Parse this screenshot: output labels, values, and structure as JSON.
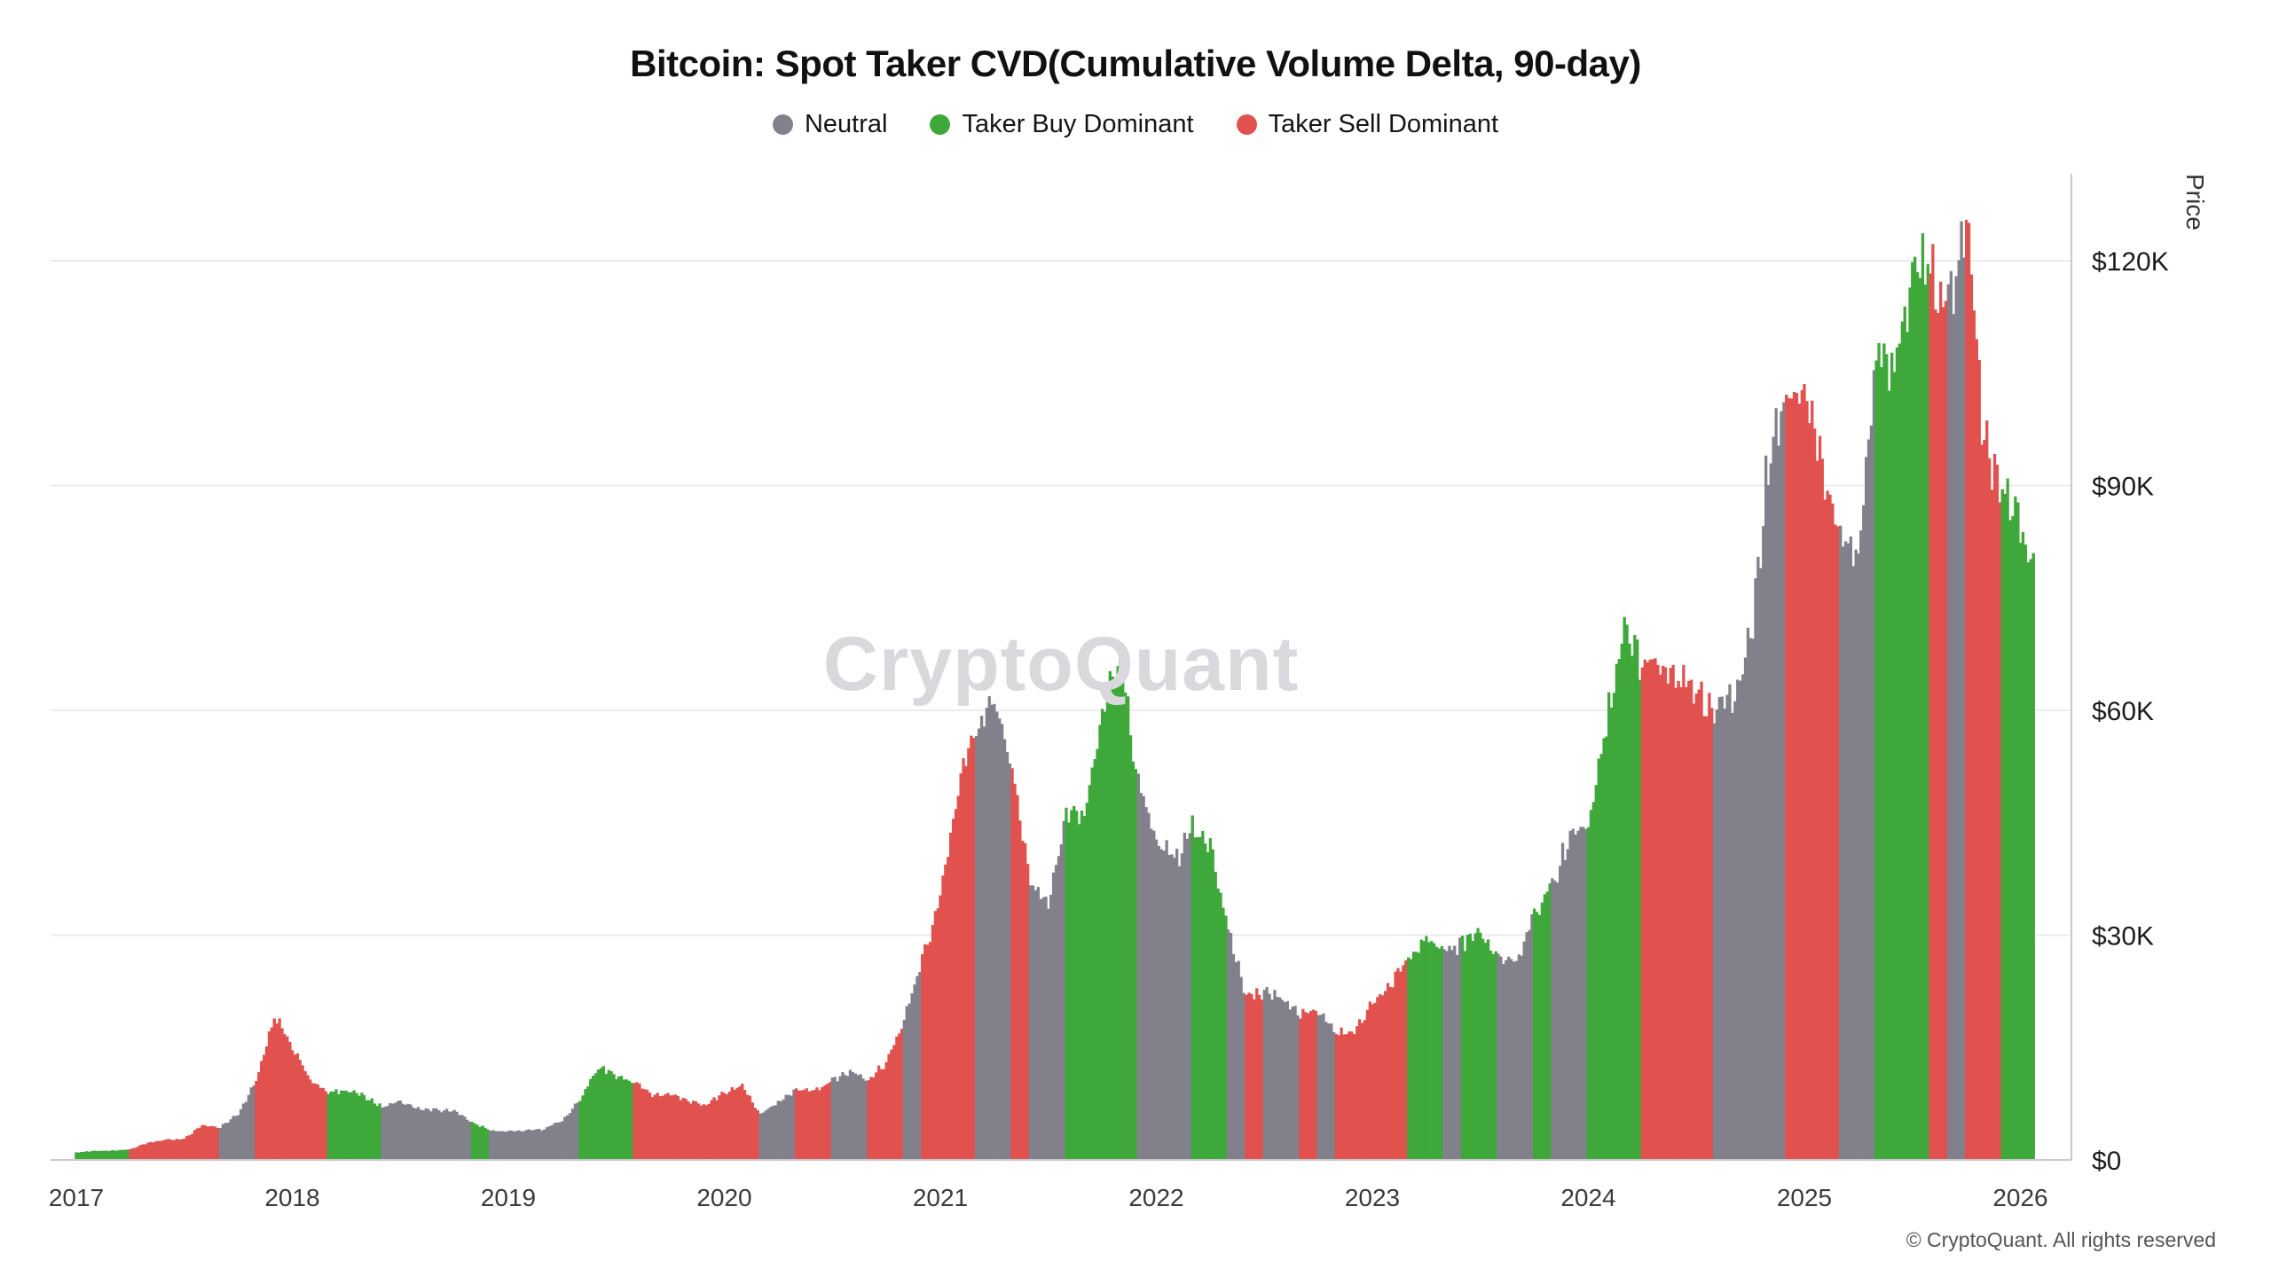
{
  "page": {
    "watermark": "CryptoQuant",
    "footer": "© CryptoQuant. All rights reserved"
  },
  "chart_data": {
    "type": "bar",
    "title": "Bitcoin: Spot Taker CVD(Cumulative Volume Delta, 90-day)",
    "ylabel": "Price",
    "x_unit": "year",
    "y_unit": "thousand USD",
    "ylim_k": [
      0,
      131.5
    ],
    "xlim": [
      2016.9,
      2026.4
    ],
    "grid": "horizontal-only",
    "legend_position": "top-center",
    "legend": [
      {
        "key": "N",
        "label": "Neutral",
        "color": "#82818b"
      },
      {
        "key": "G",
        "label": "Taker Buy Dominant",
        "color": "#3fa83b"
      },
      {
        "key": "R",
        "label": "Taker Sell Dominant",
        "color": "#e1514e"
      }
    ],
    "y_ticks": [
      {
        "value": 0,
        "label": "$0"
      },
      {
        "value": 30,
        "label": "$30K"
      },
      {
        "value": 60,
        "label": "$60K"
      },
      {
        "value": 90,
        "label": "$90K"
      },
      {
        "value": 120,
        "label": "$120K"
      }
    ],
    "x_ticks": [
      {
        "value": 2017,
        "label": "2017"
      },
      {
        "value": 2018,
        "label": "2018"
      },
      {
        "value": 2019,
        "label": "2019"
      },
      {
        "value": 2020,
        "label": "2020"
      },
      {
        "value": 2021,
        "label": "2021"
      },
      {
        "value": 2022,
        "label": "2022"
      },
      {
        "value": 2023,
        "label": "2023"
      },
      {
        "value": 2024,
        "label": "2024"
      },
      {
        "value": 2025,
        "label": "2025"
      },
      {
        "value": 2026,
        "label": "2026"
      }
    ],
    "series_format": [
      "decimal_year",
      "btc_price_thousand_usd",
      "regime: N=Neutral, G=Taker Buy Dominant, R=Taker Sell Dominant"
    ],
    "series": [
      [
        2017.0,
        1.0,
        "G"
      ],
      [
        2017.083,
        1.2,
        "G"
      ],
      [
        2017.167,
        1.25,
        "G"
      ],
      [
        2017.25,
        1.4,
        "R"
      ],
      [
        2017.333,
        2.3,
        "R"
      ],
      [
        2017.417,
        2.7,
        "R"
      ],
      [
        2017.5,
        2.8,
        "R"
      ],
      [
        2017.583,
        4.6,
        "R"
      ],
      [
        2017.667,
        4.4,
        "N"
      ],
      [
        2017.75,
        6.2,
        "N"
      ],
      [
        2017.833,
        10.5,
        "R"
      ],
      [
        2017.917,
        19.3,
        "R"
      ],
      [
        2018.0,
        15.0,
        "R"
      ],
      [
        2018.083,
        10.8,
        "R"
      ],
      [
        2018.167,
        9.0,
        "G"
      ],
      [
        2018.25,
        9.3,
        "G"
      ],
      [
        2018.333,
        8.6,
        "G"
      ],
      [
        2018.417,
        7.0,
        "N"
      ],
      [
        2018.5,
        7.8,
        "N"
      ],
      [
        2018.583,
        6.9,
        "N"
      ],
      [
        2018.667,
        6.7,
        "N"
      ],
      [
        2018.75,
        6.5,
        "N"
      ],
      [
        2018.833,
        5.0,
        "G"
      ],
      [
        2018.917,
        3.9,
        "N"
      ],
      [
        2019.0,
        3.8,
        "N"
      ],
      [
        2019.083,
        3.9,
        "N"
      ],
      [
        2019.167,
        4.1,
        "N"
      ],
      [
        2019.25,
        5.3,
        "N"
      ],
      [
        2019.333,
        8.0,
        "G"
      ],
      [
        2019.417,
        12.5,
        "G"
      ],
      [
        2019.5,
        11.3,
        "G"
      ],
      [
        2019.583,
        10.4,
        "R"
      ],
      [
        2019.667,
        8.6,
        "R"
      ],
      [
        2019.75,
        8.9,
        "R"
      ],
      [
        2019.833,
        7.8,
        "R"
      ],
      [
        2019.917,
        7.3,
        "R"
      ],
      [
        2020.0,
        9.0,
        "R"
      ],
      [
        2020.083,
        9.8,
        "R"
      ],
      [
        2020.167,
        6.2,
        "N"
      ],
      [
        2020.25,
        7.6,
        "N"
      ],
      [
        2020.333,
        9.4,
        "R"
      ],
      [
        2020.417,
        9.3,
        "R"
      ],
      [
        2020.5,
        10.6,
        "N"
      ],
      [
        2020.583,
        11.8,
        "N"
      ],
      [
        2020.667,
        10.8,
        "R"
      ],
      [
        2020.75,
        13.0,
        "R"
      ],
      [
        2020.833,
        18.5,
        "N"
      ],
      [
        2020.917,
        27.0,
        "R"
      ],
      [
        2021.0,
        35,
        "R"
      ],
      [
        2021.083,
        50,
        "R"
      ],
      [
        2021.167,
        58,
        "N"
      ],
      [
        2021.25,
        62,
        "N"
      ],
      [
        2021.333,
        52,
        "R"
      ],
      [
        2021.417,
        37,
        "N"
      ],
      [
        2021.5,
        34,
        "N"
      ],
      [
        2021.583,
        46,
        "G"
      ],
      [
        2021.667,
        46,
        "G"
      ],
      [
        2021.75,
        60,
        "G"
      ],
      [
        2021.833,
        66,
        "G"
      ],
      [
        2021.917,
        50,
        "N"
      ],
      [
        2022.0,
        43,
        "N"
      ],
      [
        2022.083,
        40,
        "N"
      ],
      [
        2022.167,
        44,
        "G"
      ],
      [
        2022.25,
        42,
        "G"
      ],
      [
        2022.333,
        31,
        "N"
      ],
      [
        2022.417,
        22,
        "R"
      ],
      [
        2022.5,
        22.5,
        "N"
      ],
      [
        2022.583,
        21.5,
        "N"
      ],
      [
        2022.667,
        19.5,
        "R"
      ],
      [
        2022.75,
        19.6,
        "N"
      ],
      [
        2022.833,
        17.0,
        "R"
      ],
      [
        2022.917,
        16.8,
        "R"
      ],
      [
        2023.0,
        21,
        "R"
      ],
      [
        2023.083,
        23.5,
        "R"
      ],
      [
        2023.167,
        27,
        "G"
      ],
      [
        2023.25,
        29.5,
        "G"
      ],
      [
        2023.333,
        27.5,
        "N"
      ],
      [
        2023.417,
        29,
        "G"
      ],
      [
        2023.5,
        30.5,
        "G"
      ],
      [
        2023.583,
        27,
        "N"
      ],
      [
        2023.667,
        26.5,
        "N"
      ],
      [
        2023.75,
        33,
        "G"
      ],
      [
        2023.833,
        37,
        "N"
      ],
      [
        2023.917,
        43,
        "N"
      ],
      [
        2024.0,
        45,
        "G"
      ],
      [
        2024.083,
        58,
        "G"
      ],
      [
        2024.167,
        71,
        "G"
      ],
      [
        2024.25,
        66,
        "R"
      ],
      [
        2024.333,
        67,
        "R"
      ],
      [
        2024.417,
        64,
        "R"
      ],
      [
        2024.5,
        62,
        "R"
      ],
      [
        2024.583,
        60,
        "N"
      ],
      [
        2024.667,
        62,
        "N"
      ],
      [
        2024.75,
        69,
        "N"
      ],
      [
        2024.833,
        93,
        "N"
      ],
      [
        2024.917,
        101,
        "R"
      ],
      [
        2025.0,
        104,
        "R"
      ],
      [
        2025.083,
        93,
        "R"
      ],
      [
        2025.167,
        84,
        "N"
      ],
      [
        2025.25,
        79,
        "N"
      ],
      [
        2025.333,
        107,
        "G"
      ],
      [
        2025.417,
        106,
        "G"
      ],
      [
        2025.5,
        117,
        "G"
      ],
      [
        2025.583,
        119,
        "R"
      ],
      [
        2025.667,
        114,
        "N"
      ],
      [
        2025.75,
        125,
        "R"
      ],
      [
        2025.833,
        96,
        "R"
      ],
      [
        2025.917,
        89,
        "G"
      ],
      [
        2026.0,
        86,
        "G"
      ],
      [
        2026.06,
        78,
        "G"
      ]
    ]
  }
}
